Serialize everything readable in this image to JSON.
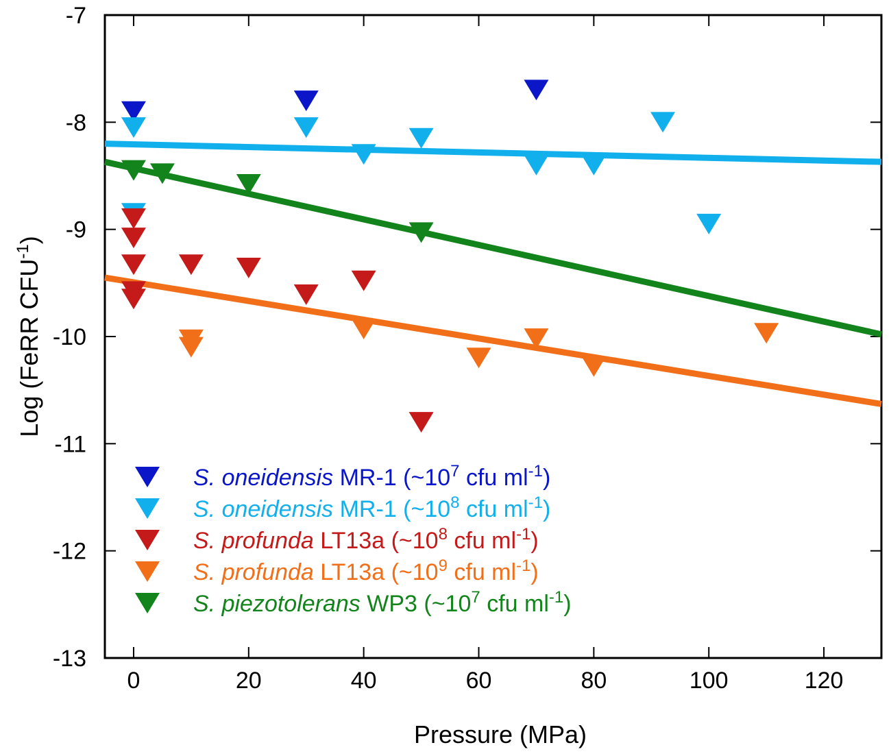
{
  "chart_data": {
    "type": "scatter",
    "title": "",
    "xlabel": "Pressure (MPa)",
    "ylabel_main": "Log (FeRR CFU",
    "ylabel_sup": "-1",
    "ylabel_close": ")",
    "xlim": [
      -5,
      130
    ],
    "ylim": [
      -13,
      -7
    ],
    "xticks": [
      0,
      20,
      40,
      60,
      80,
      100,
      120
    ],
    "yticks": [
      -7,
      -8,
      -9,
      -10,
      -11,
      -12,
      -13
    ],
    "series": [
      {
        "key": "mr1-1e7",
        "color": "#0a16c8",
        "legend": {
          "species": "S. oneidensis",
          "strain": "MR-1",
          "conc_pre": "(~10",
          "conc_exp": "7",
          "conc_mid": " cfu ml",
          "conc_exp2": "-1",
          "conc_post": ")"
        },
        "points": [
          [
            0,
            -7.9
          ],
          [
            30,
            -7.8
          ],
          [
            70,
            -7.7
          ]
        ]
      },
      {
        "key": "mr1-1e8",
        "color": "#11b0ec",
        "legend": {
          "species": "S. oneidensis",
          "strain": "MR-1",
          "conc_pre": "(~10",
          "conc_exp": "8",
          "conc_mid": " cfu ml",
          "conc_exp2": "-1",
          "conc_post": ")"
        },
        "points": [
          [
            0,
            -8.05
          ],
          [
            0,
            -8.85
          ],
          [
            30,
            -8.05
          ],
          [
            40,
            -8.3
          ],
          [
            50,
            -8.15
          ],
          [
            70,
            -8.4
          ],
          [
            80,
            -8.4
          ],
          [
            92,
            -8.0
          ],
          [
            100,
            -8.95
          ]
        ],
        "fit": [
          [
            -5,
            -8.2
          ],
          [
            130,
            -8.37
          ]
        ]
      },
      {
        "key": "lt13a-1e8",
        "color": "#c41a1a",
        "legend": {
          "species": "S. profunda",
          "strain": "LT13a",
          "conc_pre": "(~10",
          "conc_exp": "8",
          "conc_mid": " cfu ml",
          "conc_exp2": "-1",
          "conc_post": ")"
        },
        "points": [
          [
            0,
            -8.9
          ],
          [
            0,
            -9.08
          ],
          [
            0,
            -9.33
          ],
          [
            0,
            -9.58
          ],
          [
            0,
            -9.65
          ],
          [
            10,
            -9.33
          ],
          [
            20,
            -9.36
          ],
          [
            30,
            -9.61
          ],
          [
            40,
            -9.48
          ],
          [
            50,
            -10.8
          ]
        ]
      },
      {
        "key": "lt13a-1e9",
        "color": "#f26f1a",
        "legend": {
          "species": "S. profunda",
          "strain": "LT13a",
          "conc_pre": "(~10",
          "conc_exp": "9",
          "conc_mid": " cfu ml",
          "conc_exp2": "-1",
          "conc_post": ")"
        },
        "points": [
          [
            10,
            -10.03
          ],
          [
            10,
            -10.1
          ],
          [
            40,
            -9.93
          ],
          [
            60,
            -10.2
          ],
          [
            70,
            -10.02
          ],
          [
            80,
            -10.28
          ],
          [
            110,
            -9.97
          ]
        ],
        "fit": [
          [
            -5,
            -9.45
          ],
          [
            130,
            -10.63
          ]
        ]
      },
      {
        "key": "wp3-1e7",
        "color": "#13841c",
        "legend": {
          "species": "S. piezotolerans",
          "strain": "WP3",
          "conc_pre": "(~10",
          "conc_exp": "7",
          "conc_mid": " cfu ml",
          "conc_exp2": "-1",
          "conc_post": ")"
        },
        "points": [
          [
            0,
            -8.45
          ],
          [
            5,
            -8.48
          ],
          [
            20,
            -8.58
          ],
          [
            50,
            -9.03
          ]
        ],
        "fit": [
          [
            -5,
            -8.37
          ],
          [
            130,
            -9.98
          ]
        ]
      }
    ],
    "legend_position": "bottom-left"
  }
}
